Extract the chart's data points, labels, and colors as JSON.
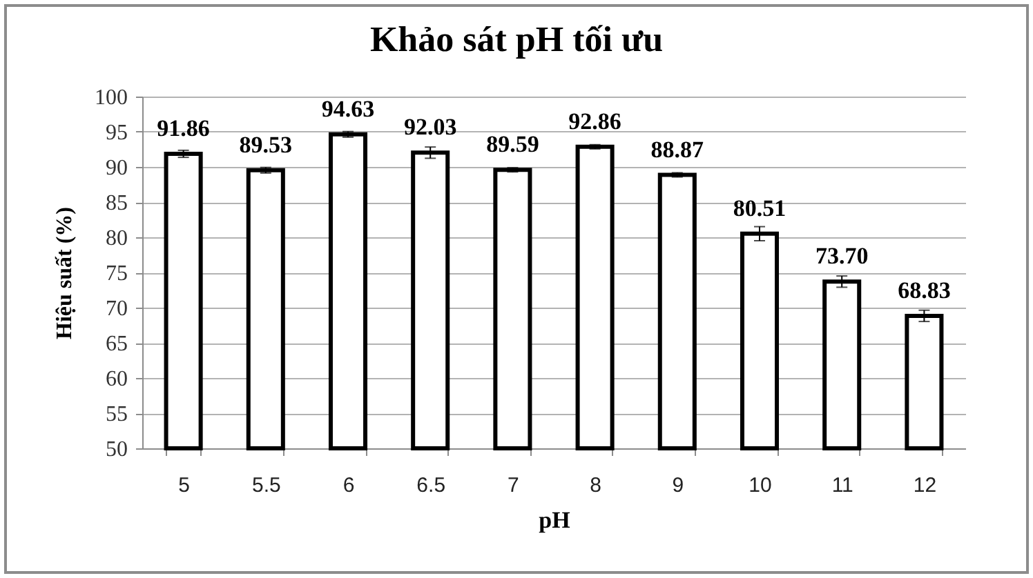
{
  "chart_data": {
    "type": "bar",
    "title": "Khảo sát pH tối ưu",
    "xlabel": "pH",
    "ylabel": "Hiệu suất (%)",
    "categories": [
      "5",
      "5.5",
      "6",
      "6.5",
      "7",
      "8",
      "9",
      "10",
      "11",
      "12"
    ],
    "values": [
      91.86,
      89.53,
      94.63,
      92.03,
      89.59,
      92.86,
      88.87,
      80.51,
      73.7,
      68.83
    ],
    "value_labels": [
      "91.86",
      "89.53",
      "94.63",
      "92.03",
      "89.59",
      "92.86",
      "88.87",
      "80.51",
      "73.70",
      "68.83"
    ],
    "errors": [
      0.5,
      0.4,
      0.4,
      0.8,
      0.3,
      0.3,
      0.3,
      1,
      0.8,
      0.8
    ],
    "color": "#ffffff",
    "ylim": [
      50,
      100
    ],
    "yticks": [
      50,
      55,
      60,
      65,
      70,
      75,
      80,
      85,
      90,
      95,
      100
    ],
    "grid": "y"
  }
}
